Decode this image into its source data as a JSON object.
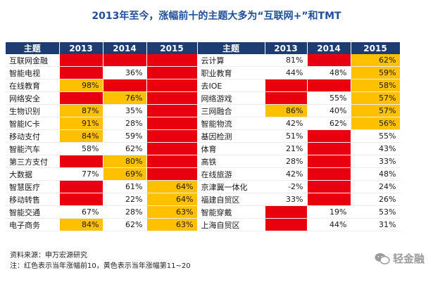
{
  "title": "2013年至今，涨幅前十的主题大多为“互联网+”和TMT",
  "headers": [
    "主题",
    "2013",
    "2014",
    "2015",
    "主题",
    "2013",
    "2014",
    "2015"
  ],
  "colors": {
    "header": "#1d3c71",
    "top10": "#e9000f",
    "top11_20": "#ffc000",
    "title": "#1f4e9b"
  },
  "rows": [
    {
      "left": {
        "name": "互联网金融",
        "cells": [
          {
            "v": "",
            "c": "red"
          },
          {
            "v": "",
            "c": "red"
          },
          {
            "v": "",
            "c": "red"
          }
        ]
      },
      "right": {
        "name": "云计算",
        "cells": [
          {
            "v": "81%",
            "c": "wht"
          },
          {
            "v": "",
            "c": "red"
          },
          {
            "v": "62%",
            "c": "yel"
          }
        ]
      }
    },
    {
      "left": {
        "name": "智能电视",
        "cells": [
          {
            "v": "",
            "c": "red"
          },
          {
            "v": "36%",
            "c": "wht"
          },
          {
            "v": "",
            "c": "red"
          }
        ]
      },
      "right": {
        "name": "职业教育",
        "cells": [
          {
            "v": "44%",
            "c": "wht"
          },
          {
            "v": "48%",
            "c": "wht"
          },
          {
            "v": "59%",
            "c": "yel"
          }
        ]
      }
    },
    {
      "left": {
        "name": "在线教育",
        "cells": [
          {
            "v": "98%",
            "c": "yel"
          },
          {
            "v": "",
            "c": "red"
          },
          {
            "v": "",
            "c": "red"
          }
        ]
      },
      "right": {
        "name": "去IOE",
        "cells": [
          {
            "v": "",
            "c": "red"
          },
          {
            "v": "",
            "c": "red"
          },
          {
            "v": "58%",
            "c": "yel"
          }
        ]
      }
    },
    {
      "left": {
        "name": "网络安全",
        "cells": [
          {
            "v": "",
            "c": "red"
          },
          {
            "v": "76%",
            "c": "yel"
          },
          {
            "v": "",
            "c": "red"
          }
        ]
      },
      "right": {
        "name": "网络游戏",
        "cells": [
          {
            "v": "",
            "c": "red"
          },
          {
            "v": "55%",
            "c": "wht"
          },
          {
            "v": "57%",
            "c": "yel"
          }
        ]
      }
    },
    {
      "left": {
        "name": "生物识别",
        "cells": [
          {
            "v": "87%",
            "c": "yel"
          },
          {
            "v": "35%",
            "c": "wht"
          },
          {
            "v": "",
            "c": "red"
          }
        ]
      },
      "right": {
        "name": "三网融合",
        "cells": [
          {
            "v": "86%",
            "c": "yel"
          },
          {
            "v": "40%",
            "c": "wht"
          },
          {
            "v": "57%",
            "c": "yel"
          }
        ]
      }
    },
    {
      "left": {
        "name": "智能IC卡",
        "cells": [
          {
            "v": "91%",
            "c": "yel"
          },
          {
            "v": "28%",
            "c": "wht"
          },
          {
            "v": "",
            "c": "red"
          }
        ]
      },
      "right": {
        "name": "智能物流",
        "cells": [
          {
            "v": "42%",
            "c": "wht"
          },
          {
            "v": "62%",
            "c": "wht"
          },
          {
            "v": "56%",
            "c": "yel"
          }
        ]
      }
    },
    {
      "left": {
        "name": "移动支付",
        "cells": [
          {
            "v": "84%",
            "c": "yel"
          },
          {
            "v": "59%",
            "c": "wht"
          },
          {
            "v": "",
            "c": "red"
          }
        ]
      },
      "right": {
        "name": "基因检测",
        "cells": [
          {
            "v": "51%",
            "c": "wht"
          },
          {
            "v": "",
            "c": "red"
          },
          {
            "v": "55%",
            "c": "wht"
          }
        ]
      }
    },
    {
      "left": {
        "name": "智能汽车",
        "cells": [
          {
            "v": "58%",
            "c": "wht"
          },
          {
            "v": "62%",
            "c": "wht"
          },
          {
            "v": "",
            "c": "red"
          }
        ]
      },
      "right": {
        "name": "体育",
        "cells": [
          {
            "v": "21%",
            "c": "wht"
          },
          {
            "v": "",
            "c": "red"
          },
          {
            "v": "43%",
            "c": "wht"
          }
        ]
      }
    },
    {
      "left": {
        "name": "第三方支付",
        "cells": [
          {
            "v": "",
            "c": "red"
          },
          {
            "v": "80%",
            "c": "yel"
          },
          {
            "v": "",
            "c": "red"
          }
        ]
      },
      "right": {
        "name": "高铁",
        "cells": [
          {
            "v": "28%",
            "c": "wht"
          },
          {
            "v": "",
            "c": "red"
          },
          {
            "v": "33%",
            "c": "wht"
          }
        ]
      }
    },
    {
      "left": {
        "name": "大数据",
        "cells": [
          {
            "v": "77%",
            "c": "wht"
          },
          {
            "v": "69%",
            "c": "yel"
          },
          {
            "v": "",
            "c": "red"
          }
        ]
      },
      "right": {
        "name": "在线旅游",
        "cells": [
          {
            "v": "42%",
            "c": "wht"
          },
          {
            "v": "",
            "c": "red"
          },
          {
            "v": "48%",
            "c": "wht"
          }
        ]
      }
    },
    {
      "left": {
        "name": "智慧医疗",
        "cells": [
          {
            "v": "",
            "c": "red"
          },
          {
            "v": "61%",
            "c": "wht"
          },
          {
            "v": "64%",
            "c": "yel"
          }
        ]
      },
      "right": {
        "name": "京津冀一体化",
        "cells": [
          {
            "v": "-2%",
            "c": "wht"
          },
          {
            "v": "",
            "c": "red"
          },
          {
            "v": "24%",
            "c": "wht"
          }
        ]
      }
    },
    {
      "left": {
        "name": "移动转售",
        "cells": [
          {
            "v": "",
            "c": "red"
          },
          {
            "v": "22%",
            "c": "wht"
          },
          {
            "v": "64%",
            "c": "yel"
          }
        ]
      },
      "right": {
        "name": "福建自贸区",
        "cells": [
          {
            "v": "33%",
            "c": "wht"
          },
          {
            "v": "",
            "c": "red"
          },
          {
            "v": "26%",
            "c": "wht"
          }
        ]
      }
    },
    {
      "left": {
        "name": "智能交通",
        "cells": [
          {
            "v": "67%",
            "c": "wht"
          },
          {
            "v": "28%",
            "c": "wht"
          },
          {
            "v": "63%",
            "c": "yel"
          }
        ]
      },
      "right": {
        "name": "智能穿戴",
        "cells": [
          {
            "v": "",
            "c": "red"
          },
          {
            "v": "19%",
            "c": "wht"
          },
          {
            "v": "53%",
            "c": "wht"
          }
        ]
      }
    },
    {
      "left": {
        "name": "电子商务",
        "cells": [
          {
            "v": "84%",
            "c": "yel"
          },
          {
            "v": "62%",
            "c": "wht"
          },
          {
            "v": "63%",
            "c": "yel"
          }
        ]
      },
      "right": {
        "name": "上海自贸区",
        "cells": [
          {
            "v": "",
            "c": "red"
          },
          {
            "v": "44%",
            "c": "wht"
          },
          {
            "v": "31%",
            "c": "wht"
          }
        ]
      }
    }
  ],
  "source": "资料来源：申万宏源研究",
  "note": "注：红色表示当年涨幅前10，黄色表示当年涨幅第11~20",
  "watermark": "轻金融"
}
